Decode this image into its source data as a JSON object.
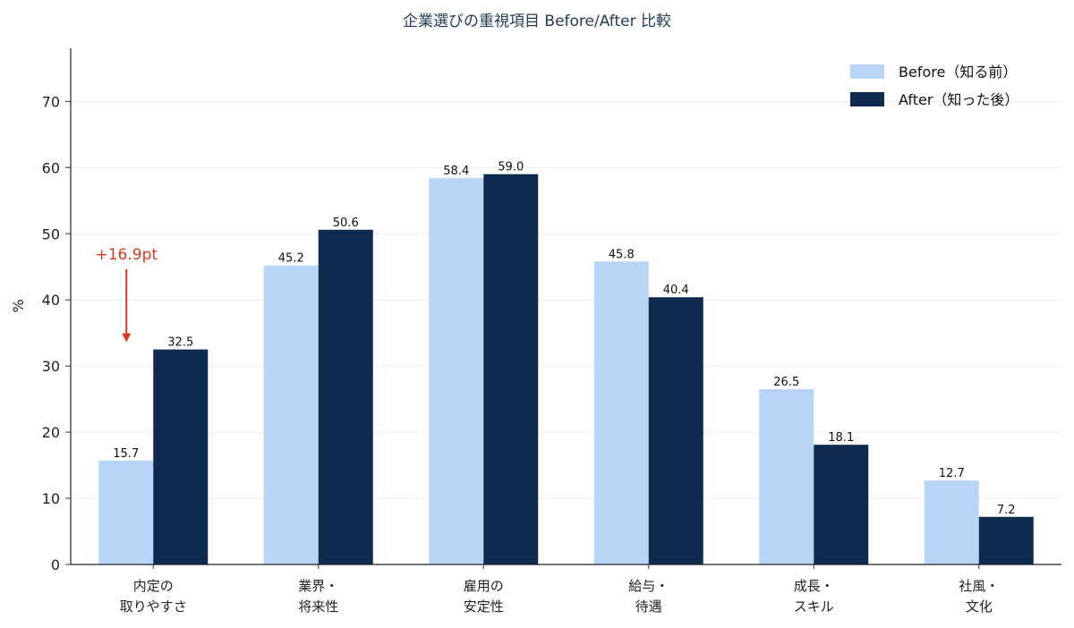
{
  "chart_data": {
    "type": "bar",
    "title": "企業選びの重視項目 Before/After 比較",
    "ylabel": "%",
    "ylim": [
      0,
      78
    ],
    "yticks": [
      0,
      10,
      20,
      30,
      40,
      50,
      60,
      70
    ],
    "grid": true,
    "legend_position": "top-right",
    "categories": [
      [
        "内定の",
        "取りやすさ"
      ],
      [
        "業界・",
        "将来性"
      ],
      [
        "雇用の",
        "安定性"
      ],
      [
        "給与・",
        "待遇"
      ],
      [
        "成長・",
        "スキル"
      ],
      [
        "社風・",
        "文化"
      ]
    ],
    "series": [
      {
        "name": "Before（知る前）",
        "color": "#b8d5f7",
        "values": [
          15.7,
          45.2,
          58.4,
          45.8,
          26.5,
          12.7
        ],
        "labels": [
          "15.7",
          "45.2",
          "58.4",
          "45.8",
          "26.5",
          "12.7"
        ]
      },
      {
        "name": "After（知った後）",
        "color": "#0f2a4f",
        "values": [
          32.5,
          50.6,
          59.0,
          40.4,
          18.1,
          7.2
        ],
        "labels": [
          "32.5",
          "50.6",
          "59.0",
          "40.4",
          "18.1",
          "7.2"
        ]
      }
    ],
    "annotation": {
      "text": "+16.9pt",
      "category_index": 0,
      "series_index": 1,
      "color": "#d9391f"
    }
  }
}
